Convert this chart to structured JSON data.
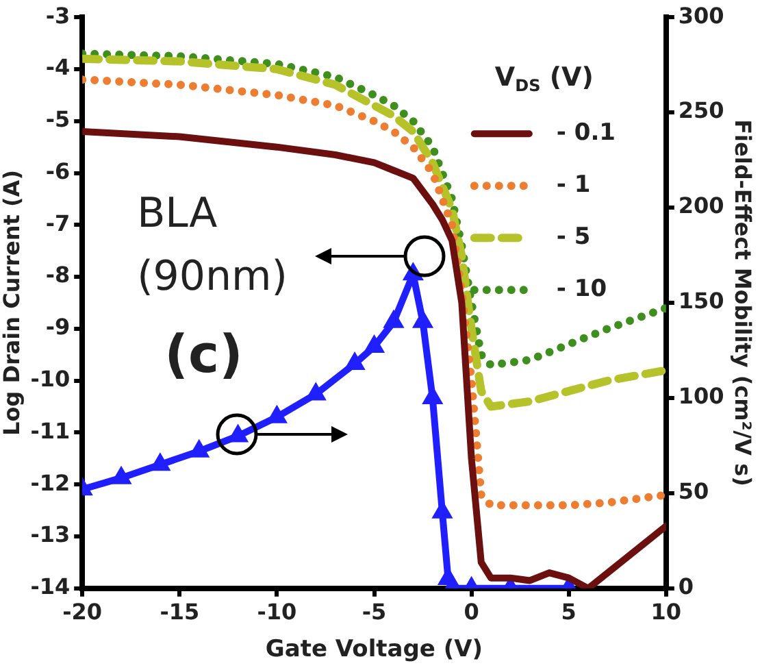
{
  "chart_data": {
    "type": "line",
    "xlabel": "Gate Voltage (V)",
    "ylabel": "Log Drain Current (A)",
    "y2label": "Field-Effect Mobility (cm²/V s)",
    "legend_title": "V$_{DS}$ (V)",
    "legend": "top right",
    "annotations": [
      "BLA (90nm)",
      "(c)"
    ],
    "xlim": [
      -20,
      10
    ],
    "xticks": [
      -20,
      -15,
      -10,
      -5,
      0,
      5,
      10
    ],
    "ylim": [
      -14,
      -3
    ],
    "yticks": [
      -14,
      -13,
      -12,
      -11,
      -10,
      -9,
      -8,
      -7,
      -6,
      -5,
      -4,
      -3
    ],
    "y2lim": [
      0,
      300
    ],
    "y2ticks": [
      0,
      50,
      100,
      150,
      200,
      250,
      300
    ],
    "series": [
      {
        "name": "- 0.1",
        "color": "#6b0f0f",
        "line_style": "solid",
        "x": [
          -20,
          -15,
          -10,
          -7,
          -5,
          -4,
          -3,
          -2,
          -1.5,
          -1,
          -0.5,
          0,
          0.5,
          1,
          2,
          3,
          4,
          5,
          6,
          7,
          8,
          9,
          10
        ],
        "values": [
          -5.2,
          -5.3,
          -5.5,
          -5.65,
          -5.8,
          -5.95,
          -6.1,
          -6.6,
          -6.9,
          -7.3,
          -8.5,
          -11.5,
          -13.5,
          -13.8,
          -13.8,
          -13.85,
          -13.7,
          -13.8,
          -14,
          -13.7,
          -13.4,
          -13.1,
          -12.8
        ]
      },
      {
        "name": "- 1",
        "color": "#ed7d31",
        "line_style": "dotted",
        "x": [
          -20,
          -15,
          -10,
          -7,
          -5,
          -4,
          -3,
          -2,
          -1,
          -0.5,
          0,
          0.5,
          1,
          3,
          5,
          7,
          10
        ],
        "values": [
          -4.2,
          -4.3,
          -4.5,
          -4.7,
          -5.0,
          -5.2,
          -5.5,
          -6.0,
          -7.0,
          -8.3,
          -10,
          -12.2,
          -12.4,
          -12.4,
          -12.4,
          -12.35,
          -12.2
        ]
      },
      {
        "name": "- 5",
        "color": "#b5c22a",
        "line_style": "dashed",
        "x": [
          -20,
          -15,
          -10,
          -7,
          -5,
          -4,
          -3,
          -2,
          -1,
          -0.5,
          0,
          0.5,
          1,
          3,
          5,
          7,
          10
        ],
        "values": [
          -3.8,
          -3.85,
          -4.0,
          -4.3,
          -4.7,
          -4.9,
          -5.2,
          -5.8,
          -6.7,
          -7.6,
          -9,
          -10.2,
          -10.5,
          -10.4,
          -10.2,
          -10.0,
          -9.8
        ]
      },
      {
        "name": "- 10",
        "color": "#3f8f1f",
        "line_style": "dotted",
        "x": [
          -20,
          -15,
          -10,
          -7,
          -5,
          -4,
          -3,
          -2,
          -1,
          -0.5,
          0,
          0.5,
          1,
          3,
          5,
          7,
          10
        ],
        "values": [
          -3.7,
          -3.75,
          -3.9,
          -4.15,
          -4.5,
          -4.7,
          -5.0,
          -5.5,
          -6.5,
          -7.4,
          -8.5,
          -9.5,
          -9.7,
          -9.6,
          -9.3,
          -9.0,
          -8.6
        ]
      },
      {
        "color": "#1f1fff",
        "axis": "y2",
        "line_style": "solid",
        "marker": "triangle",
        "x": [
          -20,
          -18,
          -16,
          -14,
          -12,
          -10,
          -8,
          -6,
          -5,
          -4,
          -3,
          -2.5,
          -2,
          -1.5,
          -1.2,
          -1,
          0,
          2,
          5
        ],
        "values": [
          52,
          58,
          65,
          72,
          80,
          90,
          102,
          118,
          127,
          140,
          165,
          140,
          100,
          40,
          5,
          0,
          0,
          0,
          0
        ]
      }
    ]
  }
}
